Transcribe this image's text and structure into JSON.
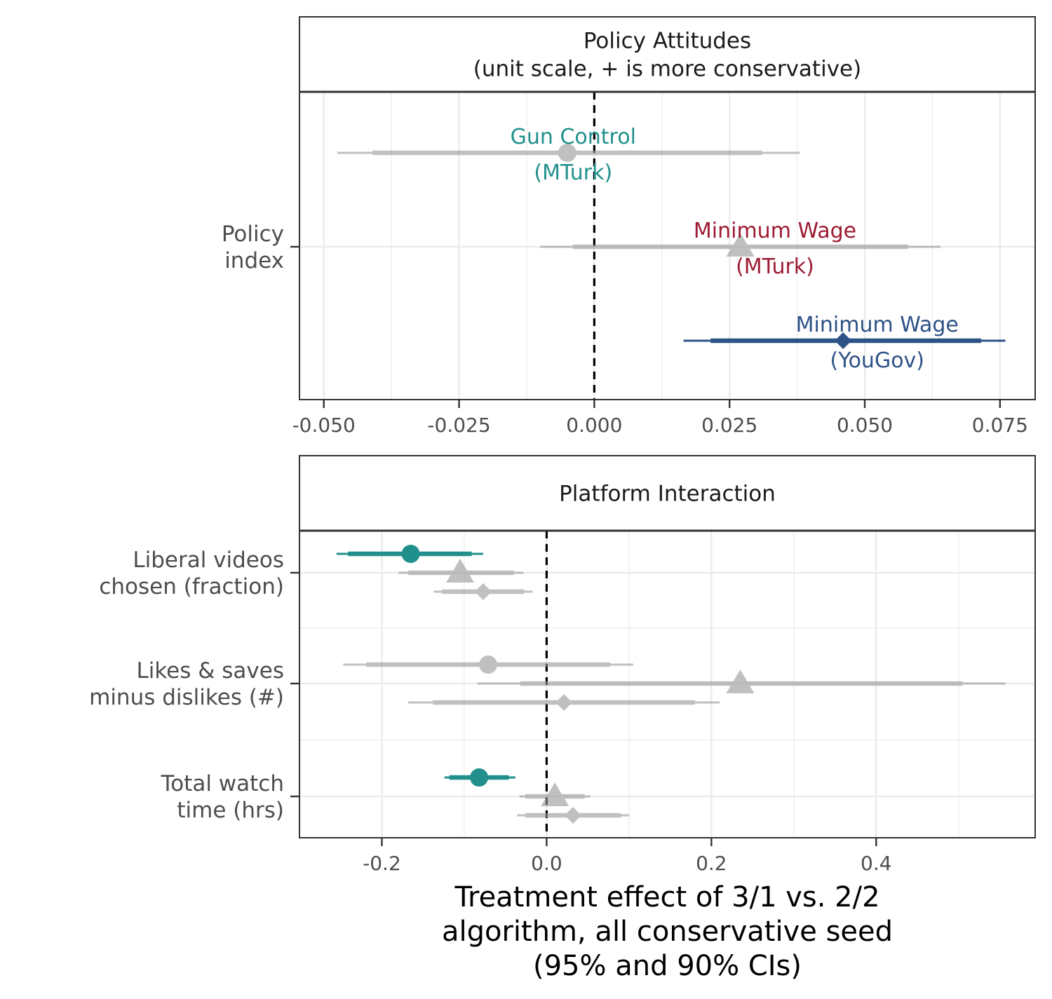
{
  "chart_data": {
    "type": "scatter",
    "subtype": "coefficient-plot",
    "xlabel_lines": [
      "Treatment effect of 3/1 vs. 2/2",
      "algorithm, all conservative seed",
      "(95% and 90% CIs)"
    ],
    "colors": {
      "gun_control_mturk": "#21908C",
      "minimum_wage_mturk": "#9E1B32",
      "minimum_wage_yougov": "#2D5286",
      "inactive": "#9a9a9a"
    },
    "panels": [
      {
        "title_lines": [
          "Policy Attitudes",
          "(unit scale, + is more conservative)"
        ],
        "xlim": [
          -0.0545,
          0.0815
        ],
        "xticks": [
          -0.05,
          -0.025,
          0.0,
          0.025,
          0.05,
          0.075
        ],
        "xtick_labels": [
          "-0.050",
          "-0.025",
          "0.000",
          "0.025",
          "0.050",
          "0.075"
        ],
        "categories": [
          {
            "label_lines": [
              "Policy",
              "index"
            ],
            "points": [
              {
                "sample": "gun_control_mturk",
                "shape": "circle",
                "active": false,
                "estimate": -0.005,
                "ci90": [
                  -0.041,
                  0.031
                ],
                "ci95": [
                  -0.0475,
                  0.038
                ],
                "label_lines": [
                  "Gun Control",
                  "(MTurk)"
                ]
              },
              {
                "sample": "minimum_wage_mturk",
                "shape": "triangle",
                "active": false,
                "estimate": 0.027,
                "ci90": [
                  -0.004,
                  0.058
                ],
                "ci95": [
                  -0.01,
                  0.064
                ],
                "label_lines": [
                  "Minimum Wage",
                  "(MTurk)"
                ]
              },
              {
                "sample": "minimum_wage_yougov",
                "shape": "diamond",
                "active": true,
                "estimate": 0.046,
                "ci90": [
                  0.0215,
                  0.0715
                ],
                "ci95": [
                  0.0165,
                  0.076
                ],
                "label_lines": [
                  "Minimum Wage",
                  "(YouGov)"
                ]
              }
            ]
          }
        ]
      },
      {
        "title_lines": [
          "Platform Interaction"
        ],
        "xlim": [
          -0.3,
          0.593
        ],
        "xticks": [
          -0.2,
          0.0,
          0.2,
          0.4
        ],
        "xtick_labels": [
          "-0.2",
          "0.0",
          "0.2",
          "0.4"
        ],
        "categories": [
          {
            "label_lines": [
              "Liberal videos",
              "chosen (fraction)"
            ],
            "points": [
              {
                "sample": "gun_control_mturk",
                "shape": "circle",
                "active": true,
                "estimate": -0.165,
                "ci90": [
                  -0.241,
                  -0.091
                ],
                "ci95": [
                  -0.255,
                  -0.077
                ]
              },
              {
                "sample": "minimum_wage_mturk",
                "shape": "triangle",
                "active": false,
                "estimate": -0.105,
                "ci90": [
                  -0.168,
                  -0.04
                ],
                "ci95": [
                  -0.18,
                  -0.028
                ]
              },
              {
                "sample": "minimum_wage_yougov",
                "shape": "diamond",
                "active": false,
                "estimate": -0.077,
                "ci90": [
                  -0.127,
                  -0.027
                ],
                "ci95": [
                  -0.137,
                  -0.017
                ]
              }
            ]
          },
          {
            "label_lines": [
              "Likes & saves",
              "minus dislikes (#)"
            ],
            "points": [
              {
                "sample": "gun_control_mturk",
                "shape": "circle",
                "active": false,
                "estimate": -0.071,
                "ci90": [
                  -0.219,
                  0.077
                ],
                "ci95": [
                  -0.247,
                  0.105
                ]
              },
              {
                "sample": "minimum_wage_mturk",
                "shape": "triangle",
                "active": false,
                "estimate": 0.235,
                "ci90": [
                  -0.032,
                  0.505
                ],
                "ci95": [
                  -0.084,
                  0.557
                ]
              },
              {
                "sample": "minimum_wage_yougov",
                "shape": "diamond",
                "active": false,
                "estimate": 0.021,
                "ci90": [
                  -0.138,
                  0.18
                ],
                "ci95": [
                  -0.168,
                  0.21
                ]
              }
            ]
          },
          {
            "label_lines": [
              "Total watch",
              "time (hrs)"
            ],
            "points": [
              {
                "sample": "gun_control_mturk",
                "shape": "circle",
                "active": true,
                "estimate": -0.082,
                "ci90": [
                  -0.118,
                  -0.046
                ],
                "ci95": [
                  -0.124,
                  -0.038
                ]
              },
              {
                "sample": "minimum_wage_mturk",
                "shape": "triangle",
                "active": false,
                "estimate": 0.01,
                "ci90": [
                  -0.026,
                  0.046
                ],
                "ci95": [
                  -0.033,
                  0.053
                ]
              },
              {
                "sample": "minimum_wage_yougov",
                "shape": "diamond",
                "active": false,
                "estimate": 0.032,
                "ci90": [
                  -0.026,
                  0.09
                ],
                "ci95": [
                  -0.036,
                  0.1
                ]
              }
            ]
          }
        ]
      }
    ]
  }
}
